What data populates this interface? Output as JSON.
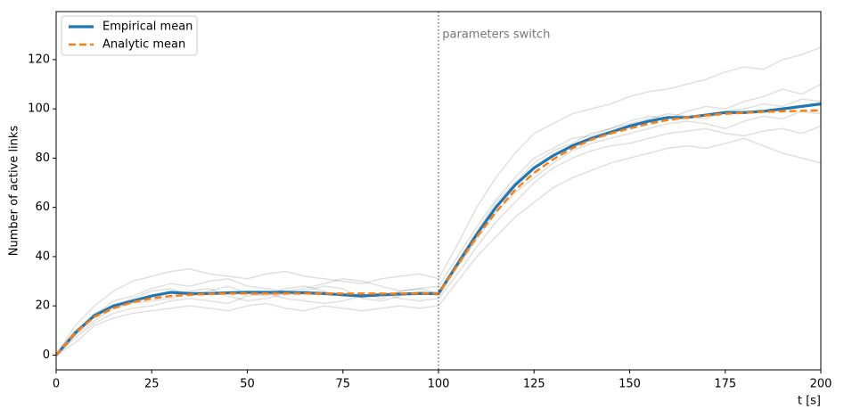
{
  "chart_data": {
    "type": "line",
    "xlabel": "t [s]",
    "ylabel": "Number of active links",
    "x": [
      0,
      5,
      10,
      15,
      20,
      25,
      30,
      35,
      40,
      45,
      50,
      55,
      60,
      65,
      70,
      75,
      80,
      85,
      90,
      95,
      100,
      105,
      110,
      115,
      120,
      125,
      130,
      135,
      140,
      145,
      150,
      155,
      160,
      165,
      170,
      175,
      180,
      185,
      190,
      195,
      200
    ],
    "series": [
      {
        "name": "Empirical mean",
        "color": "#1f77b4",
        "dash": false,
        "values": [
          0,
          9,
          16,
          20,
          22,
          24,
          25.5,
          25,
          25,
          25.3,
          25.5,
          25.5,
          25.5,
          25.3,
          25,
          24.5,
          24,
          24.5,
          24.8,
          25,
          25,
          37,
          49,
          60,
          69,
          76,
          81,
          85,
          88,
          90.5,
          93,
          95,
          96.5,
          96.5,
          97.5,
          98.5,
          98.5,
          99,
          100,
          101,
          102
        ]
      },
      {
        "name": "Analytic mean",
        "color": "#ff7f0e",
        "dash": true,
        "values": [
          0,
          9,
          15.5,
          19,
          21.5,
          23,
          24,
          24.5,
          24.8,
          25,
          25,
          25,
          25,
          25,
          25,
          25,
          25,
          25,
          25,
          25,
          25,
          36.5,
          48,
          58,
          67,
          74,
          79.5,
          84,
          87.5,
          90,
          92,
          94,
          95.5,
          96.5,
          97.3,
          98,
          98.4,
          98.8,
          99,
          99.2,
          99.4
        ]
      }
    ],
    "samples_color": "#000000",
    "samples_opacity": 0.12,
    "samples": [
      [
        0,
        12,
        20,
        26,
        30,
        32,
        34,
        35,
        33,
        32,
        31,
        33,
        34,
        32,
        31,
        30,
        29,
        31,
        32,
        33,
        31,
        45,
        60,
        72,
        82,
        90,
        94,
        98,
        100,
        102,
        105,
        107,
        108,
        110,
        112,
        115,
        117,
        116,
        120,
        122,
        125
      ],
      [
        0,
        5,
        12,
        15,
        17,
        18,
        19,
        20,
        19,
        18,
        20,
        21,
        19,
        18,
        20,
        19,
        18,
        19,
        20,
        19,
        20,
        30,
        40,
        48,
        56,
        62,
        68,
        72,
        75,
        78,
        80,
        82,
        84,
        85,
        84,
        86,
        88,
        85,
        82,
        80,
        78
      ],
      [
        0,
        9,
        17,
        20,
        23,
        26,
        27,
        24,
        26,
        28,
        25,
        24,
        27,
        28,
        26,
        24,
        25,
        23,
        26,
        27,
        25,
        38,
        50,
        62,
        70,
        78,
        83,
        86,
        90,
        92,
        94,
        96,
        98,
        97,
        96,
        99,
        100,
        102,
        101,
        104,
        103
      ],
      [
        0,
        8,
        14,
        19,
        21,
        22,
        23,
        26,
        27,
        24,
        22,
        23,
        25,
        26,
        28,
        27,
        23,
        22,
        24,
        26,
        24,
        36,
        47,
        58,
        66,
        72,
        78,
        83,
        86,
        88,
        90,
        92,
        94,
        95,
        94,
        92,
        95,
        97,
        96,
        99,
        98
      ],
      [
        0,
        10,
        16,
        22,
        24,
        27,
        29,
        28,
        30,
        31,
        28,
        27,
        26,
        27,
        29,
        31,
        30,
        28,
        26,
        27,
        28,
        40,
        52,
        63,
        72,
        80,
        84,
        88,
        89,
        92,
        95,
        97,
        96,
        99,
        101,
        100,
        103,
        105,
        108,
        106,
        110
      ],
      [
        0,
        7,
        13,
        17,
        19,
        20,
        22,
        23,
        22,
        21,
        24,
        25,
        23,
        22,
        21,
        22,
        24,
        25,
        23,
        22,
        23,
        33,
        44,
        54,
        62,
        70,
        76,
        80,
        83,
        85,
        86,
        88,
        90,
        91,
        92,
        90,
        89,
        91,
        92,
        90,
        93
      ]
    ],
    "vline": 100,
    "annotation": {
      "text": "parameters switch",
      "x": 101,
      "y": 130
    },
    "xlim": [
      0,
      200
    ],
    "xticks": [
      0,
      25,
      50,
      75,
      100,
      125,
      150,
      175,
      200
    ],
    "ylim": [
      -6,
      139.5
    ],
    "yticks": [
      0,
      20,
      40,
      60,
      80,
      100,
      120
    ],
    "legend": "upper left"
  }
}
